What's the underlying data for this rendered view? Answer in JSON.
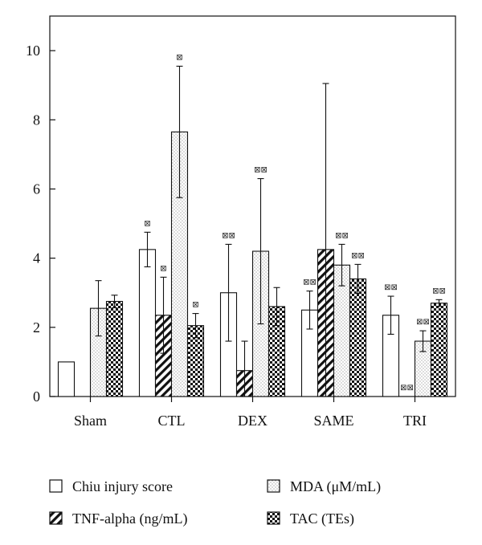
{
  "chart_data": {
    "type": "bar",
    "title": "",
    "xlabel": "",
    "ylabel": "",
    "ylim": [
      0,
      11
    ],
    "yticks": [
      "0",
      "2",
      "4",
      "6",
      "8",
      "10"
    ],
    "categories": [
      "Sham",
      "CTL",
      "DEX",
      "SAME",
      "TRI"
    ],
    "legend_position": "bottom",
    "series": [
      {
        "name": "Chiu injury score",
        "pattern": "open",
        "values": [
          1.0,
          4.25,
          3.0,
          2.5,
          2.35
        ],
        "errors": [
          0,
          0.5,
          1.4,
          0.55,
          0.55
        ],
        "significance": [
          "",
          "⊠",
          "⊠⊠",
          "⊠⊠",
          "⊠⊠"
        ]
      },
      {
        "name": "TNF-alpha (ng/mL)",
        "pattern": "hatched",
        "values": [
          null,
          2.35,
          0.75,
          4.25,
          0.0
        ],
        "errors": [
          0,
          1.1,
          0.85,
          4.8,
          0
        ],
        "significance": [
          "",
          "⊠",
          "",
          "",
          "⊠⊠"
        ]
      },
      {
        "name": "MDA (μM/mL)",
        "pattern": "dotted",
        "values": [
          2.55,
          7.65,
          4.2,
          3.8,
          1.6
        ],
        "errors": [
          0.8,
          1.9,
          2.1,
          0.6,
          0.3
        ],
        "significance": [
          "",
          "⊠",
          "⊠⊠",
          "⊠⊠",
          "⊠⊠"
        ]
      },
      {
        "name": "TAC (TEs)",
        "pattern": "checkered",
        "values": [
          2.75,
          2.05,
          2.6,
          3.4,
          2.7
        ],
        "errors": [
          0.18,
          0.35,
          0.55,
          0.42,
          0.1
        ],
        "significance": [
          "",
          "⊠",
          "",
          "⊠⊠",
          "⊠⊠"
        ]
      }
    ]
  }
}
